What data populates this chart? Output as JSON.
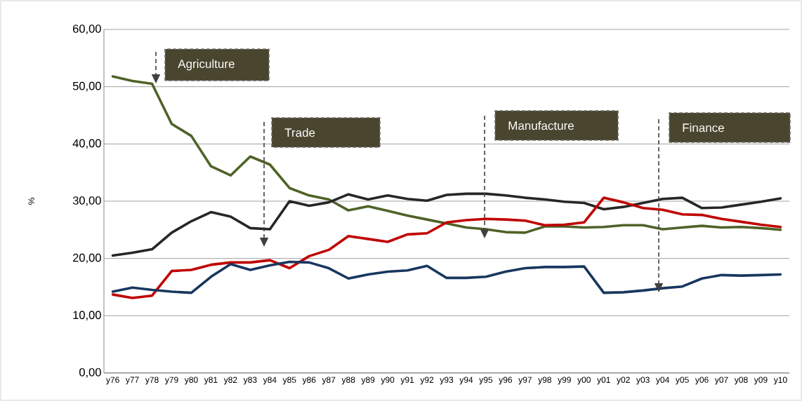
{
  "chart_data": {
    "type": "line",
    "ylabel": "%",
    "categories": [
      "y76",
      "y77",
      "y78",
      "y79",
      "y80",
      "y81",
      "y82",
      "y83",
      "y84",
      "y85",
      "y86",
      "y87",
      "y88",
      "y89",
      "y90",
      "y91",
      "y92",
      "y93",
      "y94",
      "y95",
      "y96",
      "y97",
      "y98",
      "y99",
      "y00",
      "y01",
      "y02",
      "y03",
      "y04",
      "y05",
      "y06",
      "y07",
      "y08",
      "y09",
      "y10"
    ],
    "series": [
      {
        "color": "#4f6228",
        "values": [
          51.8,
          51.0,
          50.5,
          43.5,
          41.4,
          36.1,
          34.5,
          37.8,
          36.4,
          32.3,
          31.0,
          30.3,
          28.4,
          29.1,
          28.3,
          27.5,
          26.8,
          26.1,
          25.4,
          25.1,
          24.6,
          24.5,
          25.6,
          25.6,
          25.4,
          25.5,
          25.8,
          25.8,
          25.1,
          25.4,
          25.7,
          25.4,
          25.5,
          25.3,
          25.0
        ]
      },
      {
        "color": "#262626",
        "values": [
          20.5,
          21.0,
          21.6,
          24.5,
          26.5,
          28.1,
          27.3,
          25.3,
          25.1,
          30.0,
          29.2,
          29.8,
          31.2,
          30.3,
          31.0,
          30.4,
          30.1,
          31.1,
          31.3,
          31.3,
          31.0,
          30.6,
          30.3,
          29.9,
          29.7,
          28.6,
          29.0,
          29.7,
          30.4,
          30.6,
          28.8,
          28.9,
          29.4,
          29.9,
          30.5
        ]
      },
      {
        "color": "#c00000",
        "values": [
          13.7,
          13.1,
          13.5,
          17.8,
          18.0,
          18.9,
          19.3,
          19.3,
          19.7,
          18.3,
          20.4,
          21.5,
          23.9,
          23.4,
          22.9,
          24.2,
          24.4,
          26.3,
          26.7,
          26.9,
          26.8,
          26.6,
          25.8,
          25.9,
          26.3,
          30.6,
          29.8,
          28.8,
          28.5,
          27.7,
          27.6,
          26.9,
          26.4,
          25.9,
          25.5
        ]
      },
      {
        "color": "#17375e",
        "values": [
          14.2,
          14.9,
          14.5,
          14.2,
          14.0,
          16.8,
          19.0,
          18.0,
          18.8,
          19.4,
          19.3,
          18.3,
          16.5,
          17.2,
          17.7,
          17.9,
          18.7,
          16.6,
          16.6,
          16.8,
          17.7,
          18.3,
          18.5,
          18.5,
          18.6,
          14.0,
          14.1,
          14.4,
          14.8,
          15.1,
          16.5,
          17.1,
          17.0,
          17.1,
          17.2
        ]
      }
    ],
    "ylim": [
      0,
      60
    ],
    "yticks": [
      {
        "value": 0,
        "label": "0,00"
      },
      {
        "value": 10,
        "label": "10,00"
      },
      {
        "value": 20,
        "label": "20,00"
      },
      {
        "value": 30,
        "label": "30,00"
      },
      {
        "value": 40,
        "label": "40,00"
      },
      {
        "value": 50,
        "label": "50,00"
      },
      {
        "value": 60,
        "label": "60,00"
      }
    ],
    "grid": "y",
    "marker": "none",
    "line_style": "solid",
    "annotations": [
      "Agriculture",
      "Trade",
      "Manufacture",
      "Finance"
    ]
  }
}
